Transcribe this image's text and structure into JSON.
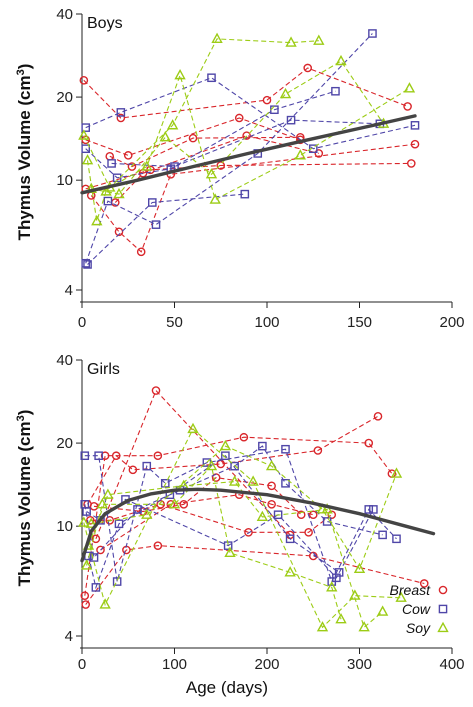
{
  "colors": {
    "Breast": "#d9262b",
    "Cow": "#4f46a8",
    "Soy": "#9ccc15",
    "fit": "#444444"
  },
  "chart_data": [
    {
      "type": "scatter",
      "title": "Boys",
      "xlabel": "",
      "ylabel_main": "Thymus Volume (cm",
      "ylabel_sup": "3",
      "ylabel_close": ")",
      "yscale": "log",
      "xlim": [
        0,
        200
      ],
      "ylim": [
        4,
        40
      ],
      "xticks": [
        "0",
        "50",
        "100",
        "150",
        "200"
      ],
      "yticks": [
        "4",
        "10",
        "20",
        "40"
      ],
      "fit": {
        "x": [
          0,
          30,
          60,
          90,
          120,
          150,
          180
        ],
        "y": [
          9.0,
          10.0,
          11.2,
          12.5,
          13.9,
          15.4,
          17.1
        ]
      },
      "series": [
        {
          "name": "Breast",
          "marker": "circle",
          "subjects": [
            [
              [
                1,
                23
              ],
              [
                21,
                16.8
              ],
              [
                100,
                19.5
              ],
              [
                122,
                25.5
              ],
              [
                176,
                18.5
              ]
            ],
            [
              [
                2,
                9.3
              ],
              [
                37,
                10.9
              ],
              [
                75,
                11.3
              ],
              [
                178,
                11.5
              ]
            ],
            [
              [
                5,
                8.8
              ],
              [
                20,
                6.5
              ],
              [
                32,
                5.5
              ],
              [
                48,
                10.5
              ],
              [
                180,
                13.5
              ]
            ],
            [
              [
                15,
                12.2
              ],
              [
                27,
                11.2
              ],
              [
                60,
                14.2
              ],
              [
                118,
                14.3
              ]
            ],
            [
              [
                18,
                8.3
              ],
              [
                33,
                10.6
              ],
              [
                89,
                14.5
              ],
              [
                128,
                12.5
              ]
            ],
            [
              [
                2,
                14.0
              ],
              [
                25,
                12.3
              ],
              [
                85,
                16.8
              ],
              [
                118,
                14.0
              ]
            ]
          ]
        },
        {
          "name": "Cow",
          "marker": "square",
          "subjects": [
            [
              [
                2,
                15.5
              ],
              [
                21,
                17.6
              ],
              [
                70,
                23.5
              ],
              [
                125,
                13
              ],
              [
                180,
                15.8
              ]
            ],
            [
              [
                2,
                13.0
              ],
              [
                19,
                10.2
              ],
              [
                48,
                11
              ],
              [
                104,
                18
              ],
              [
                137,
                21
              ]
            ],
            [
              [
                2,
                5
              ],
              [
                14,
                8.4
              ],
              [
                40,
                6.9
              ],
              [
                95,
                12.5
              ],
              [
                157,
                34
              ]
            ],
            [
              [
                3,
                4.95
              ],
              [
                38,
                8.3
              ],
              [
                88,
                8.9
              ]
            ],
            [
              [
                16,
                11.5
              ],
              [
                50,
                11.2
              ],
              [
                113,
                16.5
              ],
              [
                161,
                16.0
              ]
            ]
          ]
        },
        {
          "name": "Soy",
          "marker": "triangle",
          "subjects": [
            [
              [
                1,
                14.5
              ],
              [
                15,
                9.4
              ],
              [
                35,
                11.2
              ],
              [
                53,
                24.0
              ],
              [
                72,
                8.5
              ],
              [
                118,
                12.3
              ],
              [
                177,
                21.5
              ]
            ],
            [
              [
                3,
                11.8
              ],
              [
                8,
                7.1
              ],
              [
                13,
                9.1
              ],
              [
                49,
                15.8
              ],
              [
                73,
                32.5
              ],
              [
                113,
                31.5
              ],
              [
                128,
                32.0
              ]
            ],
            [
              [
                5,
                9.3
              ],
              [
                20,
                8.9
              ],
              [
                45,
                14.3
              ],
              [
                70,
                10.5
              ],
              [
                110,
                20.5
              ],
              [
                140,
                27.0
              ],
              [
                163,
                16.0
              ]
            ]
          ]
        }
      ]
    },
    {
      "type": "scatter",
      "title": "Girls",
      "xlabel": "Age (days)",
      "ylabel_main": "Thymus Volume (cm",
      "ylabel_sup": "3",
      "ylabel_close": ")",
      "yscale": "log",
      "xlim": [
        0,
        400
      ],
      "ylim": [
        4,
        40
      ],
      "xticks": [
        "0",
        "100",
        "200",
        "300",
        "400"
      ],
      "yticks": [
        "4",
        "10",
        "20",
        "40"
      ],
      "legend": [
        "Breast",
        "Cow",
        "Soy"
      ],
      "legend_position": "bottom-right",
      "fit": {
        "x": [
          0,
          10,
          25,
          50,
          75,
          100,
          125,
          150,
          200,
          250,
          300,
          350,
          380
        ],
        "y": [
          7.5,
          9.6,
          11.1,
          12.4,
          13.1,
          13.5,
          13.6,
          13.5,
          13.0,
          12.1,
          11.1,
          10.0,
          9.4
        ]
      },
      "series": [
        {
          "name": "Breast",
          "marker": "circle",
          "subjects": [
            [
              [
                3,
                5.6
              ],
              [
                25,
                18.0
              ],
              [
                82,
                18.0
              ],
              [
                175,
                21.0
              ],
              [
                310,
                20.0
              ],
              [
                335,
                15.5
              ]
            ],
            [
              [
                4,
                5.2
              ],
              [
                48,
                8.2
              ],
              [
                82,
                8.5
              ],
              [
                250,
                7.8
              ],
              [
                370,
                6.2
              ]
            ],
            [
              [
                6,
                12.0
              ],
              [
                37,
                18.0
              ],
              [
                55,
                16.0
              ],
              [
                150,
                16.8
              ],
              [
                255,
                18.8
              ],
              [
                320,
                25.0
              ]
            ],
            [
              [
                13,
                11.8
              ],
              [
                66,
                11.3
              ],
              [
                110,
                12.0
              ],
              [
                145,
                15.0
              ],
              [
                205,
                14.0
              ],
              [
                237,
                11.0
              ]
            ],
            [
              [
                9,
                10.5
              ],
              [
                30,
                10.5
              ],
              [
                85,
                12.0
              ],
              [
                180,
                9.5
              ],
              [
                245,
                9.5
              ],
              [
                270,
                11.0
              ]
            ],
            [
              [
                20,
                8.2
              ],
              [
                96,
                12.0
              ],
              [
                170,
                13.0
              ],
              [
                205,
                12.0
              ],
              [
                250,
                11.0
              ]
            ],
            [
              [
                15,
                9.0
              ],
              [
                80,
                31.0
              ],
              [
                225,
                9.3
              ]
            ]
          ]
        },
        {
          "name": "Cow",
          "marker": "square",
          "subjects": [
            [
              [
                3,
                18.0
              ],
              [
                18,
                18.0
              ],
              [
                38,
                6.3
              ],
              [
                70,
                16.5
              ],
              [
                90,
                14.3
              ],
              [
                135,
                17.0
              ],
              [
                220,
                19.0
              ],
              [
                270,
                6.3
              ],
              [
                310,
                11.5
              ],
              [
                340,
                9.0
              ]
            ],
            [
              [
                3,
                12.0
              ],
              [
                13,
                7.7
              ],
              [
                60,
                11.5
              ],
              [
                106,
                13.5
              ],
              [
                165,
                16.5
              ],
              [
                195,
                19.5
              ],
              [
                220,
                14.3
              ],
              [
                265,
                10.4
              ],
              [
                325,
                9.3
              ]
            ],
            [
              [
                5,
                11.3
              ],
              [
                20,
                10.5
              ],
              [
                47,
                12.5
              ],
              [
                158,
                8.5
              ],
              [
                212,
                11.0
              ],
              [
                275,
                6.5
              ],
              [
                315,
                11.5
              ]
            ],
            [
              [
                7,
                7.8
              ],
              [
                15,
                6.0
              ],
              [
                40,
                10.2
              ],
              [
                95,
                13.0
              ],
              [
                155,
                18.0
              ],
              [
                225,
                9.0
              ],
              [
                278,
                6.8
              ]
            ]
          ]
        },
        {
          "name": "Soy",
          "marker": "triangle",
          "subjects": [
            [
              [
                2,
                10.3
              ],
              [
                25,
                5.2
              ],
              [
                120,
                22.5
              ],
              [
                185,
                14.5
              ],
              [
                260,
                4.3
              ],
              [
                295,
                5.6
              ],
              [
                345,
                5.5
              ]
            ],
            [
              [
                5,
                7.2
              ],
              [
                22,
                12.0
              ],
              [
                100,
                12.0
              ],
              [
                140,
                16.5
              ],
              [
                160,
                8.0
              ],
              [
                225,
                6.8
              ],
              [
                270,
                6.0
              ],
              [
                280,
                4.6
              ]
            ],
            [
              [
                7,
                8.5
              ],
              [
                28,
                13.0
              ],
              [
                110,
                14.0
              ],
              [
                165,
                14.5
              ],
              [
                195,
                10.8
              ],
              [
                265,
                11.5
              ],
              [
                305,
                4.3
              ],
              [
                325,
                4.9
              ]
            ],
            [
              [
                10,
                10.2
              ],
              [
                70,
                11.0
              ],
              [
                155,
                19.5
              ],
              [
                205,
                16.5
              ],
              [
                260,
                11.5
              ],
              [
                300,
                7.0
              ],
              [
                340,
                15.5
              ]
            ]
          ]
        }
      ]
    }
  ]
}
